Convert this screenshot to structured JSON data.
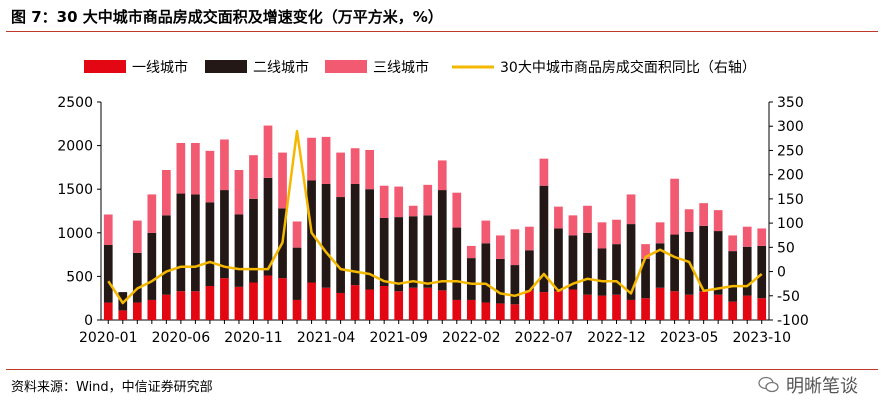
{
  "title": "图 7：30 大中城市商品房成交面积及增速变化（万平方米，%）",
  "source": "资料来源：Wind，中信证券研究部",
  "watermark": "明晰笔谈",
  "chart_data": {
    "type": "bar",
    "stacked": true,
    "categories": [
      "2020-01",
      "2020-02",
      "2020-03",
      "2020-04",
      "2020-05",
      "2020-06",
      "2020-07",
      "2020-08",
      "2020-09",
      "2020-10",
      "2020-11",
      "2020-12",
      "2021-01",
      "2021-02",
      "2021-03",
      "2021-04",
      "2021-05",
      "2021-06",
      "2021-07",
      "2021-08",
      "2021-09",
      "2021-10",
      "2021-11",
      "2021-12",
      "2022-01",
      "2022-02",
      "2022-03",
      "2022-04",
      "2022-05",
      "2022-06",
      "2022-07",
      "2022-08",
      "2022-09",
      "2022-10",
      "2022-11",
      "2022-12",
      "2023-01",
      "2023-02",
      "2023-03",
      "2023-04",
      "2023-05",
      "2023-06",
      "2023-07",
      "2023-08",
      "2023-09",
      "2023-10"
    ],
    "tick_labels": [
      "2020-01",
      "2020-06",
      "2020-11",
      "2021-04",
      "2021-09",
      "2022-02",
      "2022-07",
      "2022-12",
      "2023-05",
      "2023-10"
    ],
    "series": [
      {
        "name": "一线城市",
        "color": "#e30613",
        "values": [
          200,
          110,
          200,
          230,
          290,
          330,
          330,
          390,
          480,
          380,
          430,
          510,
          480,
          230,
          430,
          370,
          310,
          400,
          350,
          390,
          330,
          370,
          370,
          340,
          230,
          230,
          200,
          190,
          180,
          340,
          320,
          330,
          350,
          290,
          280,
          290,
          230,
          250,
          370,
          330,
          290,
          330,
          290,
          210,
          280,
          250
        ]
      },
      {
        "name": "二线城市",
        "color": "#231815",
        "values": [
          660,
          210,
          570,
          770,
          910,
          1120,
          1110,
          960,
          1010,
          830,
          960,
          1120,
          800,
          600,
          1170,
          1190,
          1100,
          1160,
          1150,
          780,
          850,
          820,
          830,
          1150,
          830,
          480,
          680,
          510,
          450,
          460,
          1220,
          720,
          620,
          710,
          540,
          580,
          870,
          450,
          510,
          650,
          720,
          750,
          730,
          580,
          560,
          600
        ]
      },
      {
        "name": "三线城市",
        "color": "#f25a71",
        "values": [
          350,
          0,
          370,
          440,
          520,
          580,
          590,
          590,
          580,
          510,
          500,
          600,
          640,
          300,
          490,
          540,
          510,
          410,
          450,
          370,
          350,
          120,
          350,
          340,
          400,
          140,
          260,
          270,
          410,
          270,
          310,
          250,
          230,
          310,
          300,
          280,
          340,
          170,
          240,
          640,
          260,
          260,
          240,
          180,
          230,
          200
        ]
      }
    ],
    "line": {
      "name": "30大中城市商品房成交面积同比（右轴）",
      "color": "#f5b800",
      "values": [
        -20,
        -65,
        -35,
        -20,
        0,
        10,
        10,
        20,
        10,
        5,
        5,
        5,
        60,
        290,
        80,
        40,
        5,
        0,
        -5,
        -20,
        -25,
        -20,
        -25,
        -20,
        -20,
        -25,
        -25,
        -45,
        -50,
        -40,
        -5,
        -40,
        -25,
        -15,
        -20,
        -20,
        -45,
        30,
        45,
        30,
        20,
        -40,
        -35,
        -30,
        -30,
        -5
      ]
    },
    "ylim_left": [
      0,
      2500
    ],
    "yticks_left": [
      0,
      500,
      1000,
      1500,
      2000,
      2500
    ],
    "ylim_right": [
      -100,
      350
    ],
    "yticks_right": [
      -100,
      -50,
      0,
      50,
      100,
      150,
      200,
      250,
      300,
      350
    ],
    "legend_position": "top"
  }
}
